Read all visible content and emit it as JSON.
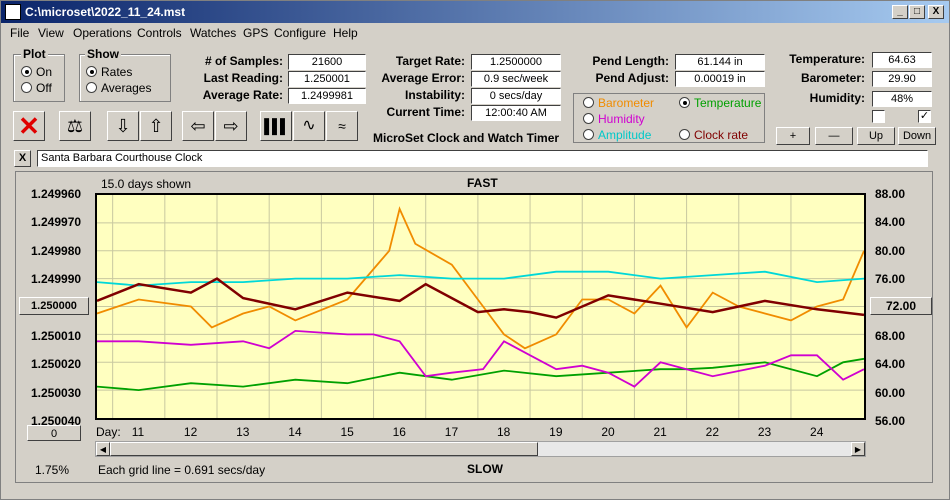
{
  "window": {
    "title": "C:\\microset\\2022_11_24.mst",
    "min": "_",
    "max": "□",
    "close": "X"
  },
  "menu": [
    "File",
    "View",
    "Operations",
    "Controls",
    "Watches",
    "GPS",
    "Configure",
    "Help"
  ],
  "plot_group": {
    "title": "Plot",
    "on": "On",
    "off": "Off",
    "selected": "On"
  },
  "show_group": {
    "title": "Show",
    "rates": "Rates",
    "averages": "Averages",
    "selected": "Rates"
  },
  "stats": {
    "samples_label": "# of Samples:",
    "samples": "21600",
    "last_label": "Last Reading:",
    "last": "1.250001",
    "avg_label": "Average Rate:",
    "avg": "1.2499981",
    "target_label": "Target Rate:",
    "target": "1.2500000",
    "error_label": "Average Error:",
    "error": "0.9 sec/week",
    "instab_label": "Instability:",
    "instab": "0 secs/day",
    "time_label": "Current Time:",
    "time": "12:00:40 AM",
    "timer_title": "MicroSet Clock and Watch Timer",
    "pend_len_label": "Pend Length:",
    "pend_len": "61.144 in",
    "pend_adj_label": "Pend Adjust:",
    "pend_adj": "0.00019 in",
    "temp_label": "Temperature:",
    "temp": "64.63",
    "baro_label": "Barometer:",
    "baro": "29.90",
    "hum_label": "Humidity:",
    "hum": "48%"
  },
  "legend": {
    "barometer": "Barometer",
    "temperature": "Temperature",
    "humidity": "Humidity",
    "amplitude": "Amplitude",
    "clockrate": "Clock rate",
    "selected": "Temperature",
    "colors": {
      "barometer": "#f08c00",
      "temperature": "#00a000",
      "humidity": "#d000d0",
      "amplitude": "#00d8d8",
      "clockrate": "#800000"
    }
  },
  "scale_buttons": {
    "plus": "+",
    "minus": "—",
    "up": "Up",
    "down": "Down"
  },
  "clock_name": "Santa Barbara Courthouse Clock",
  "close_clock": "X",
  "chart": {
    "days_shown": "15.0 days shown",
    "fast": "FAST",
    "slow": "SLOW",
    "grid_note": "Each grid line = 0.691 secs/day",
    "zoom": "1.75%",
    "day_label": "Day:",
    "left_button": "1.250000",
    "right_button": "72.00",
    "bottom_button": "0"
  },
  "chart_data": {
    "type": "line",
    "left_axis": {
      "ticks": [
        "1.249960",
        "1.249970",
        "1.249980",
        "1.249990",
        "1.250000",
        "1.250010",
        "1.250020",
        "1.250030",
        "1.250040"
      ],
      "range": [
        1.24996,
        1.25004
      ],
      "reversed": true
    },
    "right_axis": {
      "ticks": [
        "88.00",
        "84.00",
        "80.00",
        "76.00",
        "72.00",
        "68.00",
        "64.00",
        "60.00",
        "56.00"
      ],
      "range": [
        56,
        88
      ]
    },
    "x_axis": {
      "days": [
        "11",
        "12",
        "13",
        "14",
        "15",
        "16",
        "17",
        "18",
        "19",
        "20",
        "21",
        "22",
        "23",
        "24"
      ],
      "range": [
        10.2,
        24.9
      ]
    },
    "series": [
      {
        "name": "Barometer",
        "x": [
          10.2,
          11,
          12,
          12.4,
          13,
          13.5,
          14,
          15,
          15.8,
          16,
          16.3,
          17,
          17.6,
          18,
          18.4,
          19,
          19.5,
          20,
          20.5,
          21,
          21.5,
          22,
          22.5,
          23,
          23.5,
          24,
          24.5,
          24.9
        ],
        "values": [
          71,
          73,
          72,
          69,
          71,
          72,
          70,
          73,
          80,
          86,
          81,
          78,
          72,
          68,
          66,
          68,
          73,
          73,
          71,
          75,
          69,
          74,
          72,
          71,
          70,
          72,
          73,
          80
        ]
      },
      {
        "name": "Temperature",
        "x": [
          10.2,
          11,
          12,
          13,
          14,
          15,
          16,
          17,
          18,
          19,
          20,
          21,
          21.5,
          22,
          23,
          23.5,
          24,
          24.5,
          24.9
        ],
        "values": [
          60.5,
          60,
          61,
          60.5,
          61.5,
          61,
          62.5,
          61.5,
          62.8,
          62,
          62.5,
          63,
          63,
          63.2,
          64,
          63,
          62,
          64,
          64.5
        ]
      },
      {
        "name": "Humidity",
        "x": [
          10.2,
          11,
          12,
          13,
          13.5,
          14,
          15,
          15.5,
          16,
          16.5,
          17,
          17.6,
          18,
          18.5,
          19,
          19.5,
          20,
          20.5,
          21,
          21.5,
          22,
          23,
          23.5,
          24,
          24.5,
          24.9
        ],
        "values": [
          67,
          67,
          66.5,
          67,
          66,
          68.5,
          68,
          68,
          67,
          62,
          62.5,
          63,
          67,
          65,
          63,
          63.5,
          62.5,
          60.5,
          64,
          63,
          62,
          63.5,
          65,
          65,
          61.5,
          63
        ]
      },
      {
        "name": "Amplitude",
        "x": [
          10.2,
          11,
          12,
          13,
          14,
          15,
          16,
          17,
          18,
          19,
          20,
          21,
          22,
          23,
          24,
          24.9
        ],
        "values": [
          75.5,
          75,
          75.5,
          75.5,
          76,
          76,
          76.5,
          76,
          76,
          77,
          77,
          76,
          76.5,
          77,
          75.5,
          76
        ]
      },
      {
        "name": "Clock rate",
        "x": [
          10.2,
          11,
          12,
          12.5,
          13,
          14,
          15,
          16,
          16.5,
          17,
          17.5,
          18,
          18.5,
          19,
          20,
          21,
          22,
          23,
          24,
          24.9
        ],
        "values": [
          1.249998,
          1.249992,
          1.249995,
          1.24999,
          1.249997,
          1.250001,
          1.249995,
          1.249998,
          1.249992,
          1.249997,
          1.250002,
          1.250001,
          1.250002,
          1.250004,
          1.249996,
          1.249999,
          1.250002,
          1.249998,
          1.250001,
          1.250003
        ]
      }
    ]
  }
}
